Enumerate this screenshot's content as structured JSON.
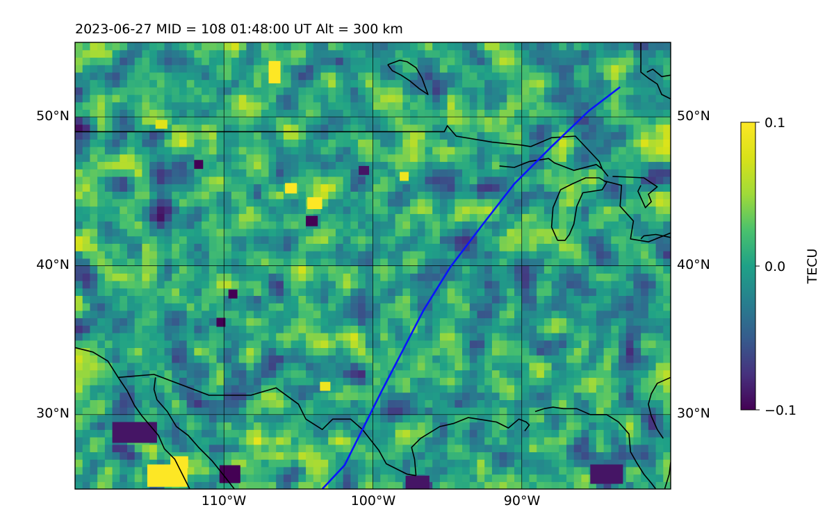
{
  "title": "2023-06-27  MID = 108    01:48:00  UT  Alt = 300 km",
  "map": {
    "lon_range": [
      -120,
      -80
    ],
    "lat_range": [
      25,
      55
    ],
    "lon_ticks": [
      {
        "value": -110,
        "label": "110°W"
      },
      {
        "value": -100,
        "label": "100°W"
      },
      {
        "value": -90,
        "label": "90°W"
      }
    ],
    "lat_ticks": [
      {
        "value": 30,
        "label": "30°N"
      },
      {
        "value": 40,
        "label": "40°N"
      },
      {
        "value": 50,
        "label": "50°N"
      }
    ],
    "colormap": "viridis",
    "value_range": [
      -0.1,
      0.1
    ],
    "track_color": "#0a14ff",
    "coast_color": "#000000",
    "grid_color": "#000000",
    "satellite_track": [
      [
        -83.4,
        52.0
      ],
      [
        -85.5,
        50.4
      ],
      [
        -88.0,
        48.0
      ],
      [
        -90.5,
        45.5
      ],
      [
        -92.6,
        42.8
      ],
      [
        -94.8,
        39.9
      ],
      [
        -96.6,
        37.0
      ],
      [
        -98.0,
        34.3
      ],
      [
        -99.4,
        31.6
      ],
      [
        -100.7,
        29.0
      ],
      [
        -101.9,
        26.6
      ],
      [
        -103.4,
        25.0
      ]
    ],
    "coastlines": [
      [
        [
          -120,
          49.0
        ],
        [
          -115,
          49.0
        ],
        [
          -110,
          49.0
        ],
        [
          -105,
          49.0
        ],
        [
          -100,
          49.0
        ],
        [
          -95.2,
          49.0
        ],
        [
          -95.0,
          49.4
        ],
        [
          -94.4,
          48.7
        ],
        [
          -92.0,
          48.3
        ],
        [
          -90.0,
          48.1
        ],
        [
          -89.4,
          48.0
        ]
      ],
      [
        [
          -89.4,
          48.0
        ],
        [
          -88.0,
          48.6
        ],
        [
          -86.4,
          48.7
        ],
        [
          -84.8,
          47.0
        ],
        [
          -84.6,
          46.5
        ]
      ],
      [
        [
          -91.5,
          46.7
        ],
        [
          -90.5,
          46.6
        ],
        [
          -89.5,
          47.0
        ],
        [
          -88.2,
          47.2
        ],
        [
          -87.8,
          46.9
        ],
        [
          -86.5,
          46.4
        ],
        [
          -85.0,
          46.8
        ],
        [
          -84.6,
          46.5
        ],
        [
          -84.2,
          46.0
        ]
      ],
      [
        [
          -87.6,
          41.7
        ],
        [
          -88.0,
          42.6
        ],
        [
          -87.9,
          43.9
        ],
        [
          -87.4,
          45.1
        ],
        [
          -86.6,
          45.5
        ],
        [
          -85.7,
          45.9
        ],
        [
          -84.8,
          45.9
        ],
        [
          -84.3,
          45.6
        ],
        [
          -84.6,
          45.1
        ],
        [
          -85.9,
          44.9
        ],
        [
          -86.3,
          44.0
        ],
        [
          -86.5,
          42.8
        ],
        [
          -86.8,
          42.1
        ],
        [
          -87.1,
          41.7
        ],
        [
          -87.6,
          41.7
        ]
      ],
      [
        [
          -84.5,
          45.7
        ],
        [
          -83.3,
          45.4
        ],
        [
          -83.4,
          44.0
        ],
        [
          -82.5,
          43.0
        ],
        [
          -82.7,
          41.8
        ],
        [
          -81.5,
          41.6
        ],
        [
          -80.5,
          42.0
        ],
        [
          -80.0,
          42.2
        ]
      ],
      [
        [
          -83.9,
          46.0
        ],
        [
          -81.8,
          45.9
        ],
        [
          -80.9,
          45.3
        ],
        [
          -81.5,
          44.8
        ],
        [
          -81.3,
          44.3
        ],
        [
          -81.7,
          43.9
        ],
        [
          -82.2,
          45.0
        ],
        [
          -82.0,
          45.4
        ]
      ],
      [
        [
          -80.0,
          41.9
        ],
        [
          -81.0,
          42.1
        ],
        [
          -81.8,
          42.0
        ],
        [
          -82.0,
          41.8
        ]
      ],
      [
        [
          -120,
          34.5
        ],
        [
          -118.8,
          34.2
        ],
        [
          -117.8,
          33.6
        ],
        [
          -117.1,
          32.5
        ],
        [
          -116.5,
          31.6
        ],
        [
          -116.0,
          30.6
        ],
        [
          -115.5,
          29.9
        ],
        [
          -114.4,
          28.6
        ],
        [
          -114.0,
          27.7
        ],
        [
          -113.3,
          27.0
        ],
        [
          -112.8,
          26.0
        ],
        [
          -112.3,
          25.0
        ]
      ],
      [
        [
          -114.6,
          32.5
        ],
        [
          -114.7,
          31.7
        ],
        [
          -114.5,
          31.0
        ],
        [
          -113.8,
          30.2
        ],
        [
          -113.2,
          29.2
        ],
        [
          -112.4,
          28.6
        ],
        [
          -111.7,
          27.8
        ],
        [
          -110.8,
          26.9
        ],
        [
          -110.0,
          25.9
        ],
        [
          -109.3,
          25.0
        ]
      ],
      [
        [
          -117.1,
          32.5
        ],
        [
          -114.7,
          32.7
        ],
        [
          -111.0,
          31.3
        ],
        [
          -108.2,
          31.3
        ],
        [
          -106.5,
          31.8
        ],
        [
          -105.0,
          30.7
        ],
        [
          -104.5,
          29.7
        ],
        [
          -103.4,
          29.0
        ],
        [
          -102.7,
          29.7
        ],
        [
          -101.5,
          29.7
        ],
        [
          -100.7,
          29.0
        ],
        [
          -99.6,
          27.6
        ],
        [
          -99.1,
          26.7
        ],
        [
          -97.7,
          26.0
        ],
        [
          -97.1,
          25.9
        ]
      ],
      [
        [
          -97.1,
          25.9
        ],
        [
          -97.2,
          27.0
        ],
        [
          -97.4,
          27.8
        ],
        [
          -96.8,
          28.4
        ],
        [
          -95.5,
          29.2
        ],
        [
          -94.6,
          29.4
        ],
        [
          -93.6,
          29.8
        ],
        [
          -92.3,
          29.6
        ],
        [
          -91.7,
          29.5
        ],
        [
          -90.9,
          29.1
        ],
        [
          -90.2,
          29.7
        ],
        [
          -89.7,
          29.5
        ],
        [
          -89.5,
          29.3
        ],
        [
          -89.8,
          28.9
        ]
      ],
      [
        [
          -89.1,
          30.2
        ],
        [
          -88.5,
          30.4
        ],
        [
          -87.9,
          30.5
        ],
        [
          -87.2,
          30.4
        ],
        [
          -86.3,
          30.4
        ],
        [
          -85.4,
          30.0
        ],
        [
          -84.3,
          30.0
        ],
        [
          -83.5,
          29.5
        ],
        [
          -82.8,
          28.7
        ],
        [
          -82.7,
          27.5
        ],
        [
          -82.3,
          26.8
        ],
        [
          -81.8,
          26.0
        ],
        [
          -81.3,
          25.4
        ],
        [
          -81.0,
          25.0
        ]
      ],
      [
        [
          -80.4,
          25.0
        ],
        [
          -80.1,
          26.0
        ],
        [
          -80.0,
          26.8
        ]
      ],
      [
        [
          -80.0,
          32.5
        ],
        [
          -80.9,
          32.1
        ],
        [
          -81.3,
          31.4
        ],
        [
          -81.5,
          30.7
        ],
        [
          -81.3,
          29.9
        ],
        [
          -80.9,
          29.0
        ],
        [
          -80.5,
          28.4
        ]
      ],
      [
        [
          -82.0,
          55.0
        ],
        [
          -82.0,
          53.0
        ],
        [
          -81.5,
          52.6
        ],
        [
          -80.9,
          52.2
        ],
        [
          -80.6,
          51.5
        ],
        [
          -80.0,
          51.2
        ]
      ],
      [
        [
          -80.0,
          52.8
        ],
        [
          -80.6,
          52.7
        ],
        [
          -81.2,
          53.2
        ],
        [
          -81.6,
          53.0
        ]
      ],
      [
        [
          -99.0,
          53.5
        ],
        [
          -98.2,
          53.8
        ],
        [
          -97.7,
          53.7
        ],
        [
          -97.1,
          53.3
        ],
        [
          -96.7,
          52.6
        ],
        [
          -96.3,
          51.5
        ],
        [
          -96.9,
          51.9
        ],
        [
          -97.5,
          52.4
        ],
        [
          -98.1,
          52.8
        ],
        [
          -98.7,
          53.1
        ],
        [
          -99.0,
          53.5
        ]
      ]
    ],
    "hotspots": [
      {
        "lon": -113.8,
        "lat": 25.9,
        "value": 0.1,
        "w": 2.7,
        "h": 1.5
      },
      {
        "lon": -113.0,
        "lat": 26.8,
        "value": 0.1,
        "w": 1.2,
        "h": 0.8
      },
      {
        "lon": -103.9,
        "lat": 44.2,
        "value": 0.1,
        "w": 1.0,
        "h": 0.8
      },
      {
        "lon": -105.5,
        "lat": 45.2,
        "value": 0.1,
        "w": 0.8,
        "h": 0.7
      },
      {
        "lon": -106.6,
        "lat": 53.0,
        "value": 0.1,
        "w": 0.8,
        "h": 1.5
      },
      {
        "lon": -97.9,
        "lat": 46.0,
        "value": 0.09,
        "w": 0.6,
        "h": 0.6
      },
      {
        "lon": -103.2,
        "lat": 31.9,
        "value": 0.09,
        "w": 0.7,
        "h": 0.6
      },
      {
        "lon": -114.2,
        "lat": 49.5,
        "value": 0.08,
        "w": 0.8,
        "h": 0.6
      },
      {
        "lon": -104.1,
        "lat": 43.0,
        "value": -0.1,
        "w": 0.8,
        "h": 0.7
      },
      {
        "lon": -109.6,
        "lat": 26.0,
        "value": -0.1,
        "w": 1.4,
        "h": 1.2
      },
      {
        "lon": -111.7,
        "lat": 46.8,
        "value": -0.1,
        "w": 0.6,
        "h": 0.6
      },
      {
        "lon": -116.0,
        "lat": 28.8,
        "value": -0.09,
        "w": 3.0,
        "h": 1.4
      },
      {
        "lon": -97.0,
        "lat": 25.4,
        "value": -0.09,
        "w": 1.6,
        "h": 1.0
      },
      {
        "lon": -84.3,
        "lat": 26.0,
        "value": -0.09,
        "w": 2.2,
        "h": 1.3
      },
      {
        "lon": -100.6,
        "lat": 46.4,
        "value": -0.09,
        "w": 0.7,
        "h": 0.6
      },
      {
        "lon": -109.4,
        "lat": 38.1,
        "value": -0.1,
        "w": 0.6,
        "h": 0.6
      },
      {
        "lon": -110.2,
        "lat": 36.2,
        "value": -0.1,
        "w": 0.6,
        "h": 0.6
      }
    ]
  },
  "colorbar": {
    "label": "TECU",
    "ticks": [
      {
        "value": 0.1,
        "label": "0.1"
      },
      {
        "value": 0.0,
        "label": "0.0"
      },
      {
        "value": -0.1,
        "label": "−0.1"
      }
    ]
  }
}
